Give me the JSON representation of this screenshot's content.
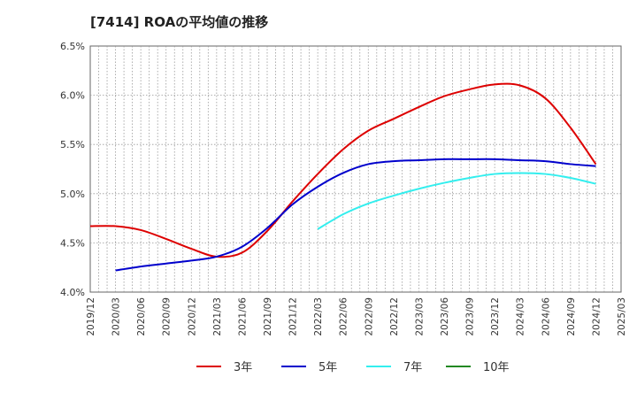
{
  "chart_data": {
    "type": "line",
    "title": "[7414]  ROAの平均値の推移",
    "xlabel": "",
    "ylabel": "",
    "x": [
      "2019/12",
      "2020/03",
      "2020/06",
      "2020/09",
      "2020/12",
      "2021/03",
      "2021/06",
      "2021/09",
      "2021/12",
      "2022/03",
      "2022/06",
      "2022/09",
      "2022/12",
      "2023/03",
      "2023/06",
      "2023/09",
      "2023/12",
      "2024/03",
      "2024/06",
      "2024/09",
      "2024/12",
      "2025/03"
    ],
    "y_ticks": [
      "4.0%",
      "4.5%",
      "5.0%",
      "5.5%",
      "6.0%",
      "6.5%"
    ],
    "ylim": [
      4.0,
      6.5
    ],
    "y_unit": "%",
    "grid": true,
    "legend_position": "bottom",
    "series": [
      {
        "name": "3年",
        "color": "#dd0000",
        "values": [
          4.67,
          4.67,
          4.63,
          4.54,
          4.44,
          4.36,
          4.4,
          4.62,
          4.92,
          5.2,
          5.45,
          5.64,
          5.76,
          5.88,
          5.99,
          6.06,
          6.11,
          6.1,
          5.97,
          5.67,
          5.3,
          null
        ]
      },
      {
        "name": "5年",
        "color": "#0000cc",
        "values": [
          null,
          4.22,
          4.26,
          4.29,
          4.32,
          4.36,
          4.46,
          4.65,
          4.89,
          5.07,
          5.21,
          5.3,
          5.33,
          5.34,
          5.35,
          5.35,
          5.35,
          5.34,
          5.33,
          5.3,
          5.28,
          null
        ]
      },
      {
        "name": "7年",
        "color": "#33eeee",
        "values": [
          null,
          null,
          null,
          null,
          null,
          null,
          null,
          null,
          null,
          4.64,
          4.79,
          4.9,
          4.98,
          5.05,
          5.11,
          5.16,
          5.2,
          5.21,
          5.2,
          5.16,
          5.1,
          null
        ]
      },
      {
        "name": "10年",
        "color": "#228822",
        "values": [
          null,
          null,
          null,
          null,
          null,
          null,
          null,
          null,
          null,
          null,
          null,
          null,
          null,
          null,
          null,
          null,
          null,
          null,
          null,
          null,
          null,
          null
        ]
      }
    ]
  }
}
